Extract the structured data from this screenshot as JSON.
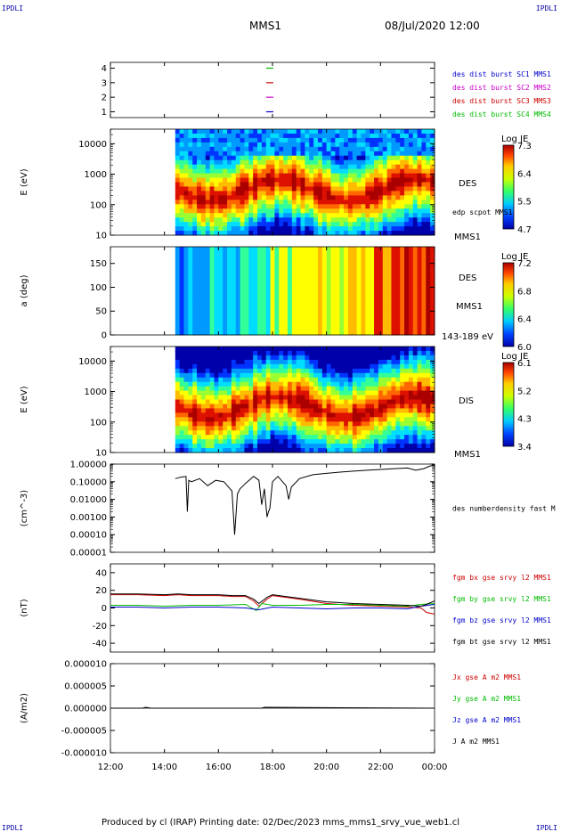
{
  "page": {
    "corner_label": "IPDLI",
    "title": "MMS1",
    "datetime": "08/Jul/2020 12:00",
    "footer": "Produced by cl (IRAP)   Printing date: 02/Dec/2023   mms_mms1_srvy_vue_web1.cl"
  },
  "colors": {
    "blue": "#0000cc",
    "magenta": "#cc00cc",
    "red": "#cc0000",
    "green": "#00bb00",
    "black": "#000000"
  },
  "chart_data": [
    {
      "id": "burst",
      "type": "line",
      "ylabel": "",
      "yticks": [
        "1",
        "2",
        "3",
        "4"
      ],
      "ylim": [
        0.6,
        4.4
      ],
      "legend_placement": "right",
      "legend": [
        {
          "name": "des dist burst SC1 MMS1",
          "color": "#0000cc"
        },
        {
          "name": "des dist burst SC2 MMS2",
          "color": "#cc00cc"
        },
        {
          "name": "des dist burst SC3 MMS3",
          "color": "#cc0000"
        },
        {
          "name": "des dist burst SC4 MMS4",
          "color": "#00bb00"
        }
      ],
      "marks": [
        {
          "y": 1,
          "x_hour": 17.9,
          "color": "#0000cc"
        },
        {
          "y": 2,
          "x_hour": 17.9,
          "color": "#cc00cc"
        },
        {
          "y": 3,
          "x_hour": 17.9,
          "color": "#cc0000"
        },
        {
          "y": 4,
          "x_hour": 17.9,
          "color": "#00bb00"
        }
      ]
    },
    {
      "id": "des_energy",
      "type": "heatmap",
      "ylabel": "E (eV)",
      "yticks": [
        "10",
        "100",
        "1000",
        "10000"
      ],
      "yscale": "log",
      "ylim": [
        10,
        30000
      ],
      "side_labels": [
        "DES",
        "edp scpot MMS1",
        "MMS1"
      ],
      "colorbar": {
        "title": "Log JE",
        "ticks": [
          "7.3",
          "6.4",
          "5.5",
          "4.7"
        ],
        "range": [
          4.7,
          7.3
        ]
      },
      "data_start_hour": 14.4
    },
    {
      "id": "des_pitch",
      "type": "heatmap",
      "ylabel": "a (deg)",
      "yticks": [
        "0",
        "50",
        "100",
        "150"
      ],
      "ylim": [
        0,
        185
      ],
      "side_labels": [
        "DES",
        "MMS1",
        "143-189 eV"
      ],
      "colorbar": {
        "title": "Log JE",
        "ticks": [
          "7.2",
          "6.8",
          "6.4",
          "6.0"
        ],
        "range": [
          6.0,
          7.2
        ]
      },
      "data_start_hour": 14.4
    },
    {
      "id": "dis_energy",
      "type": "heatmap",
      "ylabel": "E (eV)",
      "yticks": [
        "10",
        "100",
        "1000",
        "10000"
      ],
      "yscale": "log",
      "ylim": [
        10,
        30000
      ],
      "side_labels": [
        "DIS",
        "MMS1"
      ],
      "colorbar": {
        "title": "Log JE",
        "ticks": [
          "6.1",
          "5.2",
          "4.3",
          "3.4"
        ],
        "range": [
          3.4,
          6.1
        ]
      },
      "data_start_hour": 14.4
    },
    {
      "id": "density",
      "type": "line",
      "ylabel": "(cm^-3)",
      "yticks": [
        "0.00001",
        "0.00010",
        "0.00100",
        "0.01000",
        "0.10000",
        "1.00000"
      ],
      "yscale": "log",
      "ylim": [
        1e-05,
        1.0
      ],
      "legend_placement": "right",
      "legend": [
        {
          "name": "des numberdensity fast M",
          "color": "#000000"
        }
      ],
      "series": [
        {
          "name": "des numberdensity fast M",
          "color": "#000000",
          "x": [
            14.4,
            14.6,
            14.8,
            14.85,
            14.9,
            15.0,
            15.3,
            15.6,
            15.9,
            16.2,
            16.5,
            16.6,
            16.7,
            16.8,
            17.0,
            17.3,
            17.5,
            17.6,
            17.7,
            17.8,
            17.85,
            17.9,
            18.0,
            18.2,
            18.5,
            18.6,
            18.7,
            19.0,
            19.5,
            20.0,
            20.5,
            21.0,
            21.5,
            22.0,
            22.5,
            23.0,
            23.3,
            23.6,
            23.8,
            24.0
          ],
          "y": [
            0.15,
            0.18,
            0.2,
            0.002,
            0.12,
            0.1,
            0.15,
            0.06,
            0.12,
            0.1,
            0.03,
            0.0001,
            0.02,
            0.04,
            0.08,
            0.2,
            0.12,
            0.005,
            0.04,
            0.001,
            0.002,
            0.003,
            0.1,
            0.2,
            0.06,
            0.01,
            0.05,
            0.15,
            0.25,
            0.3,
            0.35,
            0.4,
            0.45,
            0.5,
            0.55,
            0.6,
            0.45,
            0.55,
            0.75,
            0.9
          ]
        }
      ]
    },
    {
      "id": "magnetic_field",
      "type": "line",
      "ylabel": "(nT)",
      "yticks": [
        "-40",
        "-20",
        "0",
        "20",
        "40"
      ],
      "ylim": [
        -50,
        50
      ],
      "legend_placement": "right",
      "legend": [
        {
          "name": "fgm bx gse srvy l2 MMS1",
          "color": "#cc0000"
        },
        {
          "name": "fgm by gse srvy l2 MMS1",
          "color": "#00bb00"
        },
        {
          "name": "fgm bz gse srvy l2 MMS1",
          "color": "#0000cc"
        },
        {
          "name": "fgm bt gse srvy l2 MMS1",
          "color": "#000000"
        }
      ],
      "series": [
        {
          "name": "fgm bx gse srvy l2 MMS1",
          "color": "#cc0000",
          "x": [
            12.0,
            13.0,
            14.0,
            14.5,
            15.0,
            16.0,
            16.5,
            17.0,
            17.3,
            17.5,
            17.8,
            18.0,
            18.5,
            19.0,
            20.0,
            21.0,
            22.0,
            23.0,
            23.5,
            23.7,
            24.0
          ],
          "y": [
            15,
            15,
            14,
            15,
            14,
            14,
            13,
            13,
            8,
            2,
            10,
            14,
            12,
            10,
            5,
            3,
            2,
            1,
            0,
            -5,
            -7
          ]
        },
        {
          "name": "fgm by gse srvy l2 MMS1",
          "color": "#00bb00",
          "x": [
            12.0,
            13.0,
            14.0,
            15.0,
            16.0,
            17.0,
            17.4,
            17.6,
            18.0,
            19.0,
            20.0,
            21.0,
            22.0,
            23.0,
            23.5,
            24.0
          ],
          "y": [
            3,
            3,
            2,
            3,
            3,
            4,
            -3,
            5,
            3,
            3,
            4,
            4,
            3,
            2,
            4,
            5
          ]
        },
        {
          "name": "fgm bz gse srvy l2 MMS1",
          "color": "#0000cc",
          "x": [
            12.0,
            13.0,
            14.0,
            15.0,
            16.0,
            17.0,
            17.5,
            18.0,
            19.0,
            20.0,
            21.0,
            22.0,
            23.0,
            23.5,
            24.0
          ],
          "y": [
            1,
            1,
            0,
            1,
            1,
            0,
            -2,
            1,
            0,
            -1,
            0,
            0,
            -1,
            2,
            4
          ]
        },
        {
          "name": "fgm bt gse srvy l2 MMS1",
          "color": "#000000",
          "x": [
            12.0,
            13.0,
            14.0,
            14.5,
            15.0,
            16.0,
            16.5,
            17.0,
            17.3,
            17.5,
            17.8,
            18.0,
            18.5,
            19.0,
            20.0,
            21.0,
            22.0,
            23.0,
            23.5,
            23.7,
            24.0
          ],
          "y": [
            16,
            16,
            15,
            16,
            15,
            15,
            14,
            14,
            10,
            5,
            12,
            15,
            13,
            11,
            7,
            5,
            4,
            3,
            2,
            4,
            8
          ]
        }
      ]
    },
    {
      "id": "current_density",
      "type": "line",
      "ylabel": "(A/m2)",
      "yticks": [
        "-0.000010",
        "-0.000005",
        "0.000000",
        "0.000005",
        "0.000010"
      ],
      "ylim": [
        -1e-05,
        1e-05
      ],
      "legend_placement": "right",
      "legend": [
        {
          "name": "Jx gse A m2 MMS1",
          "color": "#cc0000"
        },
        {
          "name": "Jy gse A m2 MMS1",
          "color": "#00bb00"
        },
        {
          "name": "Jz gse A m2 MMS1",
          "color": "#0000cc"
        },
        {
          "name": "J A m2 MMS1",
          "color": "#000000"
        }
      ],
      "series": [
        {
          "name": "J A m2 MMS1",
          "color": "#000000",
          "x": [
            12.0,
            13.2,
            13.3,
            13.5,
            17.6,
            17.7,
            24.0
          ],
          "y": [
            0.0,
            0.0,
            2e-07,
            0.0,
            0.0,
            2e-07,
            0.0
          ]
        }
      ]
    }
  ],
  "x_axis": {
    "ticks": [
      "12:00",
      "14:00",
      "16:00",
      "18:00",
      "20:00",
      "22:00",
      "00:00"
    ],
    "range_hours": [
      12,
      24
    ]
  }
}
